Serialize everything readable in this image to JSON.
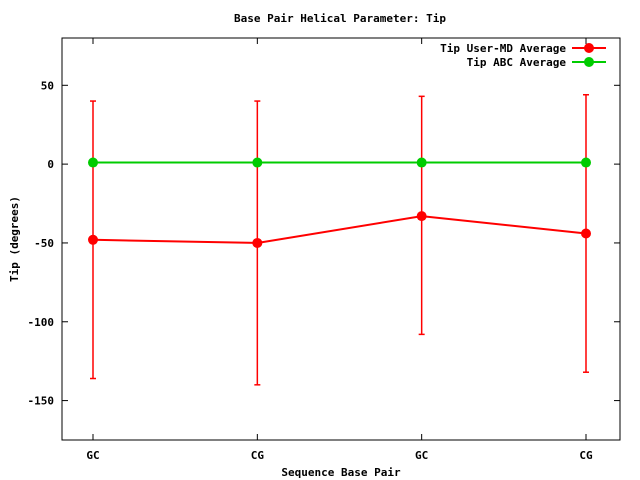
{
  "chart_data": {
    "type": "line",
    "title": "Base Pair Helical Parameter: Tip",
    "xlabel": "Sequence Base Pair",
    "ylabel": "Tip (degrees)",
    "categories": [
      "GC",
      "CG",
      "GC",
      "CG"
    ],
    "ylim": [
      -175,
      80
    ],
    "yticks": [
      50,
      0,
      -50,
      -100,
      -150
    ],
    "grid": false,
    "legend_position": "top-right",
    "series": [
      {
        "name": "Tip User-MD Average",
        "color": "#ff0000",
        "values": [
          -48,
          -50,
          -33,
          -44
        ],
        "error_low": [
          -136,
          -140,
          -108,
          -132
        ],
        "error_high": [
          40,
          40,
          43,
          44
        ]
      },
      {
        "name": "Tip ABC Average",
        "color": "#00cc00",
        "values": [
          1,
          1,
          1,
          1
        ]
      }
    ]
  }
}
